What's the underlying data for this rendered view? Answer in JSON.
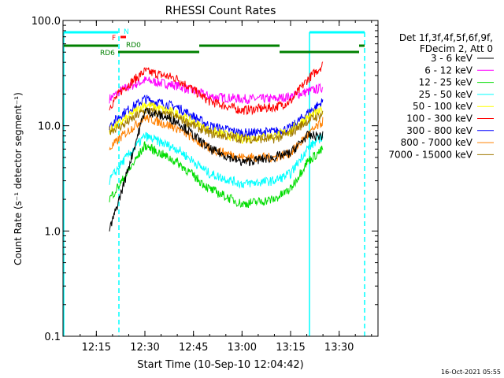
{
  "chart_data": {
    "type": "line",
    "title": "RHESSI Count Rates",
    "xlabel": "Start Time (10-Sep-10 12:04:42)",
    "ylabel": "Count Rate (s⁻¹ detector segment⁻¹)",
    "y_scale": "log",
    "ylim": [
      0.1,
      100.0
    ],
    "xlim_time": [
      "12:04:42",
      "13:42:00"
    ],
    "x_ticks": [
      "12:15",
      "12:30",
      "12:45",
      "13:00",
      "13:15",
      "13:30"
    ],
    "y_ticks": [
      "0.1",
      "1.0",
      "10.0",
      "100.0"
    ],
    "legend_header": [
      "Det 1f,3f,4f,5f,6f,9f,",
      "FDecim 2, Att 0"
    ],
    "legend_placement": "right",
    "timestamp": "16-Oct-2021 05:55",
    "series": [
      {
        "name": "3 - 6 keV",
        "color": "#000000",
        "x": [
          "12:19",
          "12:23",
          "12:30",
          "12:40",
          "12:50",
          "13:00",
          "13:10",
          "13:15",
          "13:20",
          "13:25"
        ],
        "values": [
          1.0,
          2.5,
          14.0,
          11.0,
          6.0,
          4.5,
          5.0,
          5.5,
          8.0,
          8.0
        ]
      },
      {
        "name": "6 - 12 keV",
        "color": "#ff00ff",
        "x": [
          "12:19",
          "12:23",
          "12:30",
          "12:40",
          "12:50",
          "13:00",
          "13:10",
          "13:15",
          "13:20",
          "13:25"
        ],
        "values": [
          18.0,
          22.0,
          27.0,
          24.0,
          19.0,
          18.0,
          18.0,
          19.0,
          21.0,
          23.0
        ]
      },
      {
        "name": "12 - 25 keV",
        "color": "#00dd00",
        "x": [
          "12:19",
          "12:23",
          "12:30",
          "12:40",
          "12:50",
          "13:00",
          "13:10",
          "13:15",
          "13:20",
          "13:25"
        ],
        "values": [
          2.0,
          3.0,
          6.5,
          4.5,
          2.5,
          1.8,
          2.0,
          2.5,
          4.5,
          6.0
        ]
      },
      {
        "name": "25 - 50 keV",
        "color": "#00ffff",
        "x": [
          "12:19",
          "12:23",
          "12:30",
          "12:40",
          "12:50",
          "13:00",
          "13:10",
          "13:15",
          "13:20",
          "13:25"
        ],
        "values": [
          3.0,
          4.5,
          8.0,
          6.0,
          3.5,
          2.8,
          3.0,
          3.5,
          6.0,
          8.0
        ]
      },
      {
        "name": "50 - 100 keV",
        "color": "#ffff00",
        "x": [
          "12:19",
          "12:23",
          "12:30",
          "12:40",
          "12:50",
          "13:00",
          "13:10",
          "13:15",
          "13:20",
          "13:25"
        ],
        "values": [
          9.0,
          11.0,
          16.0,
          13.0,
          9.0,
          7.5,
          8.0,
          9.0,
          12.0,
          14.0
        ]
      },
      {
        "name": "100 - 300 keV",
        "color": "#ff0000",
        "x": [
          "12:19",
          "12:23",
          "12:30",
          "12:40",
          "12:50",
          "13:00",
          "13:10",
          "13:15",
          "13:20",
          "13:25"
        ],
        "values": [
          15.0,
          22.0,
          33.0,
          28.0,
          17.0,
          14.0,
          15.0,
          17.0,
          27.0,
          38.0
        ]
      },
      {
        "name": "300 - 800 keV",
        "color": "#0000ff",
        "x": [
          "12:19",
          "12:23",
          "12:30",
          "12:40",
          "12:50",
          "13:00",
          "13:10",
          "13:15",
          "13:20",
          "13:25"
        ],
        "values": [
          10.0,
          13.0,
          18.0,
          15.0,
          10.0,
          8.5,
          8.8,
          9.5,
          13.0,
          17.0
        ]
      },
      {
        "name": "800 - 7000 keV",
        "color": "#ff8000",
        "x": [
          "12:19",
          "12:23",
          "12:30",
          "12:40",
          "12:50",
          "13:00",
          "13:10",
          "13:15",
          "13:20",
          "13:25"
        ],
        "values": [
          6.0,
          8.0,
          12.0,
          9.5,
          6.0,
          5.0,
          5.0,
          5.5,
          8.0,
          11.0
        ]
      },
      {
        "name": "7000 - 15000 keV",
        "color": "#a07800",
        "x": [
          "12:19",
          "12:23",
          "12:30",
          "12:40",
          "12:50",
          "13:00",
          "13:10",
          "13:15",
          "13:20",
          "13:25"
        ],
        "values": [
          9.0,
          10.0,
          14.0,
          12.0,
          8.5,
          7.5,
          7.5,
          8.5,
          11.0,
          13.0
        ]
      }
    ],
    "annotations": [
      {
        "label": "N",
        "color": "#00ffff"
      },
      {
        "label": "F",
        "color": "#ff0000"
      },
      {
        "label": "RD0",
        "color": "#008000"
      },
      {
        "label": "RD6",
        "color": "#008000"
      }
    ]
  }
}
